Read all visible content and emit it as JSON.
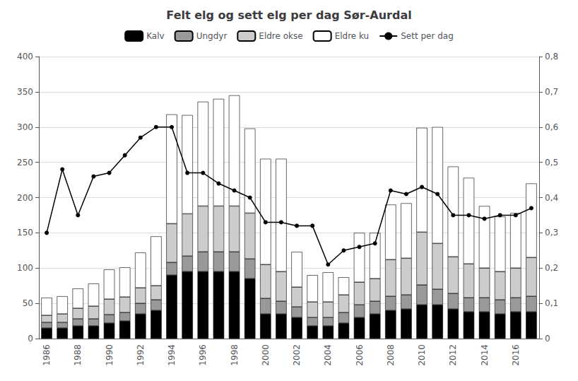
{
  "chart_data": {
    "type": "bar",
    "title": "Felt elg og sett elg per dag Sør-Aurdal",
    "categories": [
      "1986",
      null,
      "1988",
      null,
      "1990",
      null,
      "1992",
      null,
      "1994",
      null,
      "1996",
      null,
      "1998",
      null,
      "2000",
      null,
      "2002",
      null,
      "2004",
      null,
      "2006",
      null,
      "2008",
      null,
      "2010",
      null,
      "2012",
      null,
      "2014",
      null,
      "2016",
      null
    ],
    "stacked": true,
    "grid": true,
    "legend": "upper center",
    "ylim": [
      0,
      400
    ],
    "yticks": [
      0,
      50,
      100,
      150,
      200,
      250,
      300,
      350,
      400
    ],
    "y2lim": [
      0,
      0.8
    ],
    "y2ticks": [
      0,
      {
        "value": 0.1,
        "label": "0,1"
      },
      {
        "value": 0.2,
        "label": "0,2"
      },
      {
        "value": 0.3,
        "label": "0,3"
      },
      {
        "value": 0.4,
        "label": "0,4"
      },
      {
        "value": 0.5,
        "label": "0,5"
      },
      {
        "value": 0.6,
        "label": "0,6"
      },
      {
        "value": 0.7,
        "label": "0,7"
      },
      {
        "value": 0.8,
        "label": "0,8"
      }
    ],
    "series": [
      {
        "name": "Kalv",
        "color": "#000000",
        "values": [
          15,
          15,
          18,
          18,
          22,
          25,
          35,
          40,
          90,
          95,
          95,
          95,
          95,
          85,
          35,
          35,
          30,
          18,
          18,
          22,
          30,
          35,
          40,
          42,
          48,
          48,
          42,
          38,
          38,
          35,
          38,
          38
        ]
      },
      {
        "name": "Ungdyr",
        "color": "#999999",
        "values": [
          8,
          8,
          10,
          10,
          12,
          12,
          15,
          15,
          18,
          22,
          28,
          28,
          28,
          28,
          22,
          18,
          15,
          12,
          12,
          15,
          18,
          18,
          20,
          20,
          28,
          22,
          22,
          20,
          20,
          20,
          20,
          22
        ]
      },
      {
        "name": "Eldre okse",
        "color": "#cccccc",
        "values": [
          10,
          12,
          15,
          18,
          22,
          22,
          22,
          20,
          55,
          60,
          65,
          65,
          65,
          65,
          48,
          42,
          28,
          22,
          22,
          25,
          32,
          32,
          52,
          52,
          75,
          65,
          52,
          48,
          42,
          40,
          42,
          55
        ]
      },
      {
        "name": "Eldre ku",
        "color": "#ffffff",
        "values": [
          25,
          25,
          28,
          32,
          42,
          42,
          50,
          70,
          155,
          140,
          148,
          152,
          157,
          120,
          150,
          160,
          50,
          38,
          42,
          25,
          70,
          65,
          78,
          78,
          148,
          165,
          128,
          122,
          88,
          78,
          78,
          105
        ]
      },
      {
        "name": "Sett per dag",
        "type": "line",
        "axis": "y2",
        "color": "#000000",
        "marker": "circle",
        "values": [
          0.3,
          0.48,
          0.35,
          0.46,
          0.47,
          0.52,
          0.57,
          0.6,
          0.6,
          0.47,
          0.47,
          0.44,
          0.42,
          0.4,
          0.33,
          0.33,
          0.32,
          0.32,
          0.21,
          0.25,
          0.26,
          0.27,
          0.42,
          0.41,
          0.43,
          0.41,
          0.35,
          0.35,
          0.34,
          0.35,
          0.35,
          0.37
        ]
      }
    ]
  }
}
